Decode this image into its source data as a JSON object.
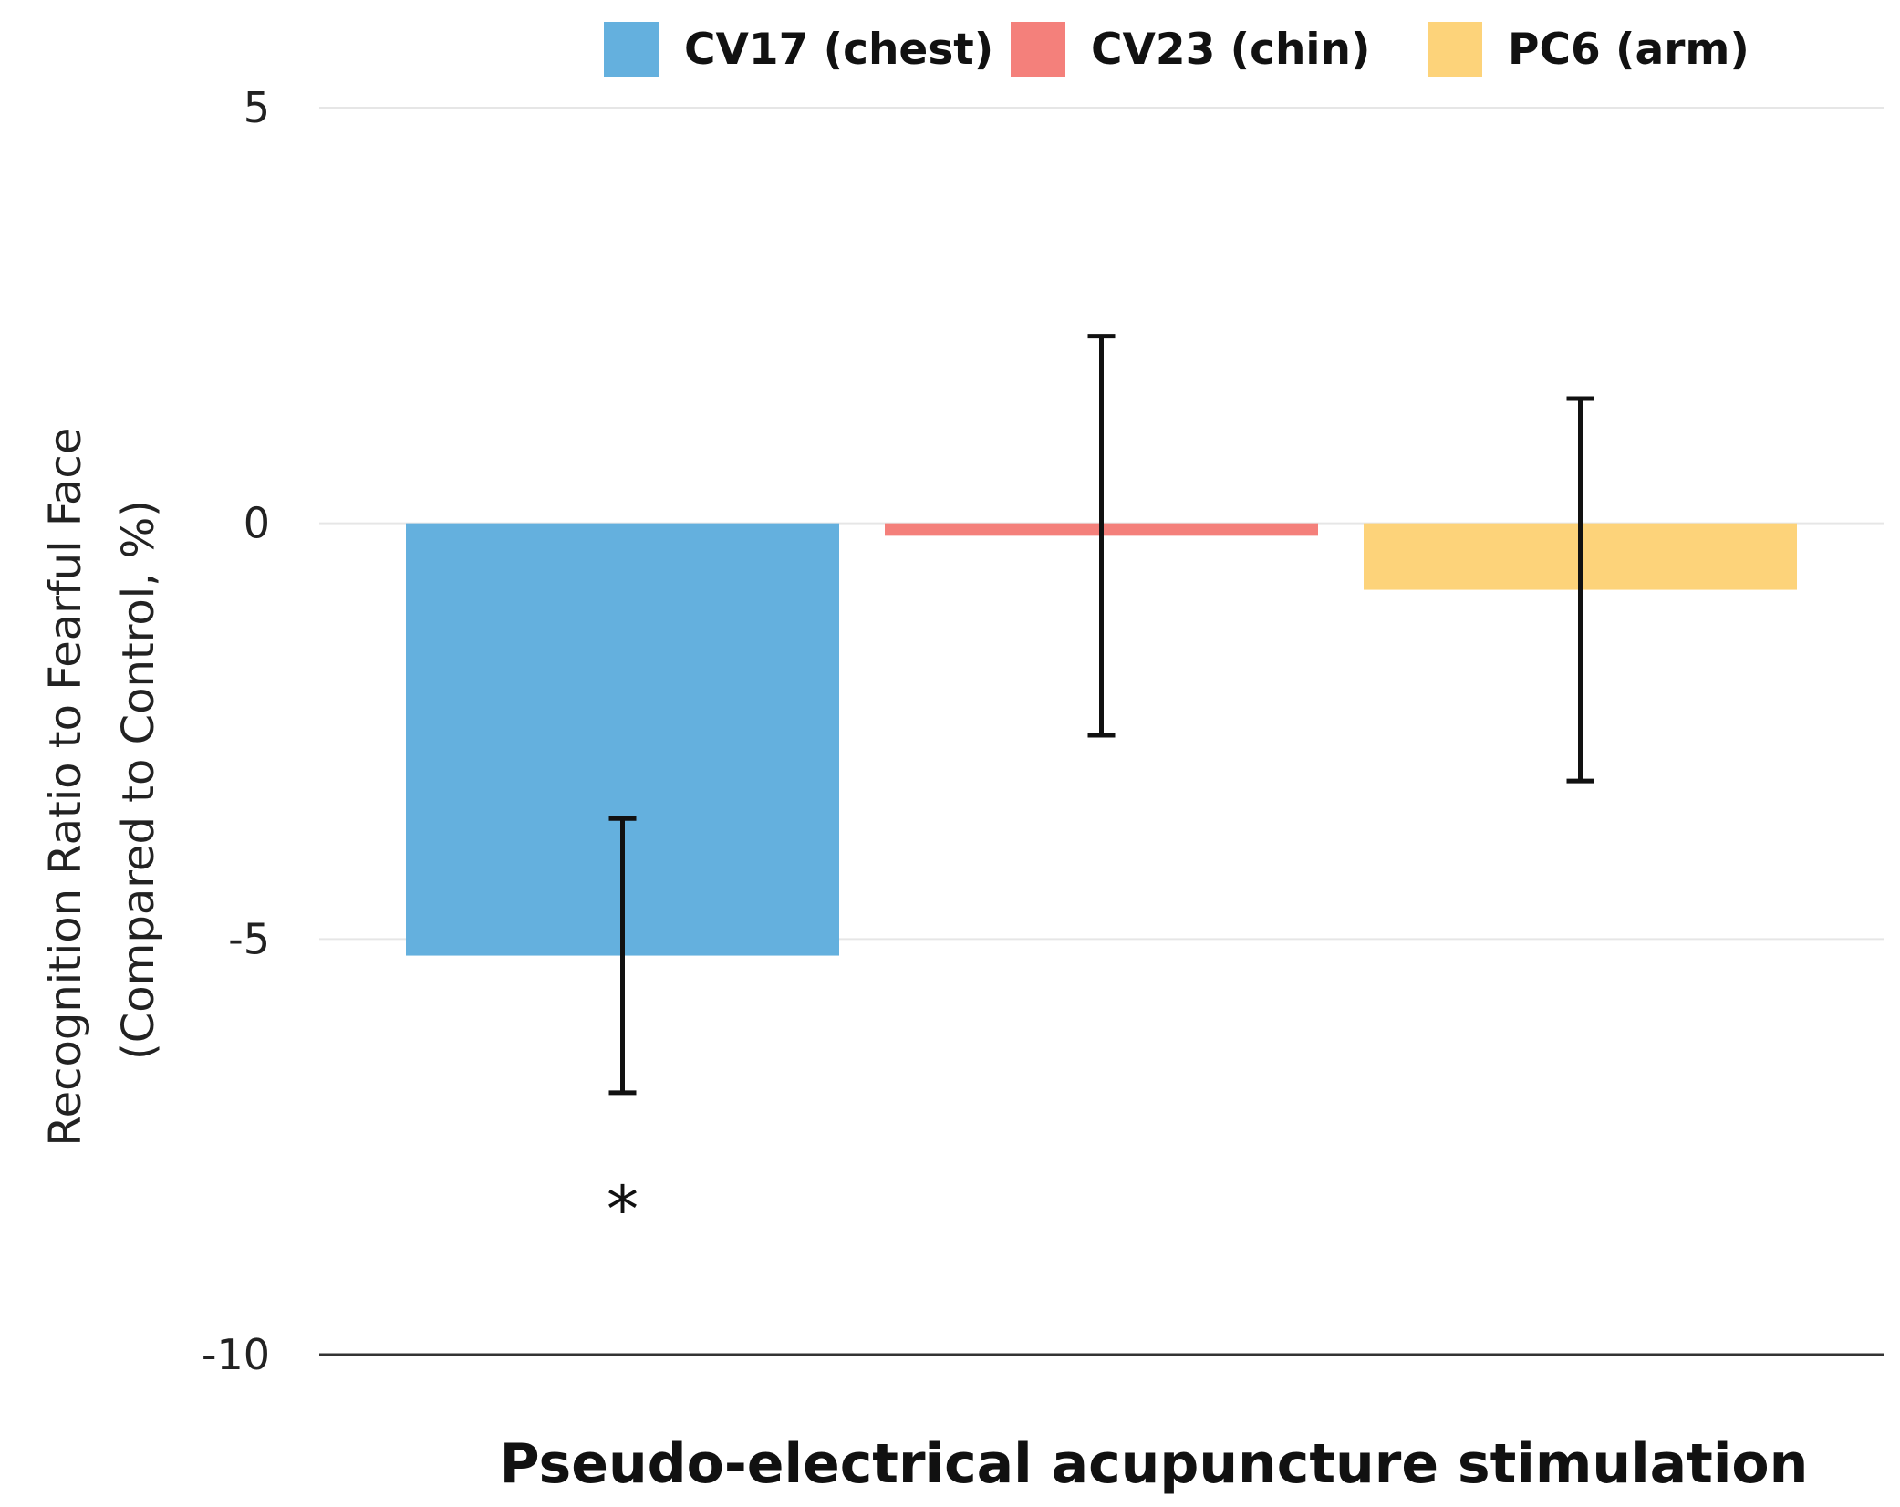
{
  "chart_data": {
    "type": "bar",
    "xlabel": "Pseudo-electrical acupuncture stimulation",
    "ylabel_lines": [
      "Recognition Ratio to Fearful Face",
      "(Compared to Control, %)"
    ],
    "ylim": [
      -10,
      5
    ],
    "yticks": [
      5,
      0,
      -5,
      -10
    ],
    "grid": true,
    "legend_position": "top",
    "series": [
      {
        "name": "CV17 (chest)",
        "value": -5.2,
        "error_low": -6.85,
        "error_high": -3.55,
        "color": "#64b0de"
      },
      {
        "name": "CV23 (chin)",
        "value": -0.15,
        "error_low": -2.55,
        "error_high": 2.25,
        "color": "#f4807b"
      },
      {
        "name": "PC6 (arm)",
        "value": -0.8,
        "error_low": -3.1,
        "error_high": 1.5,
        "color": "#fdd37a"
      }
    ],
    "annotations": [
      {
        "text": "*",
        "series": 0,
        "y": -8.1
      }
    ]
  }
}
